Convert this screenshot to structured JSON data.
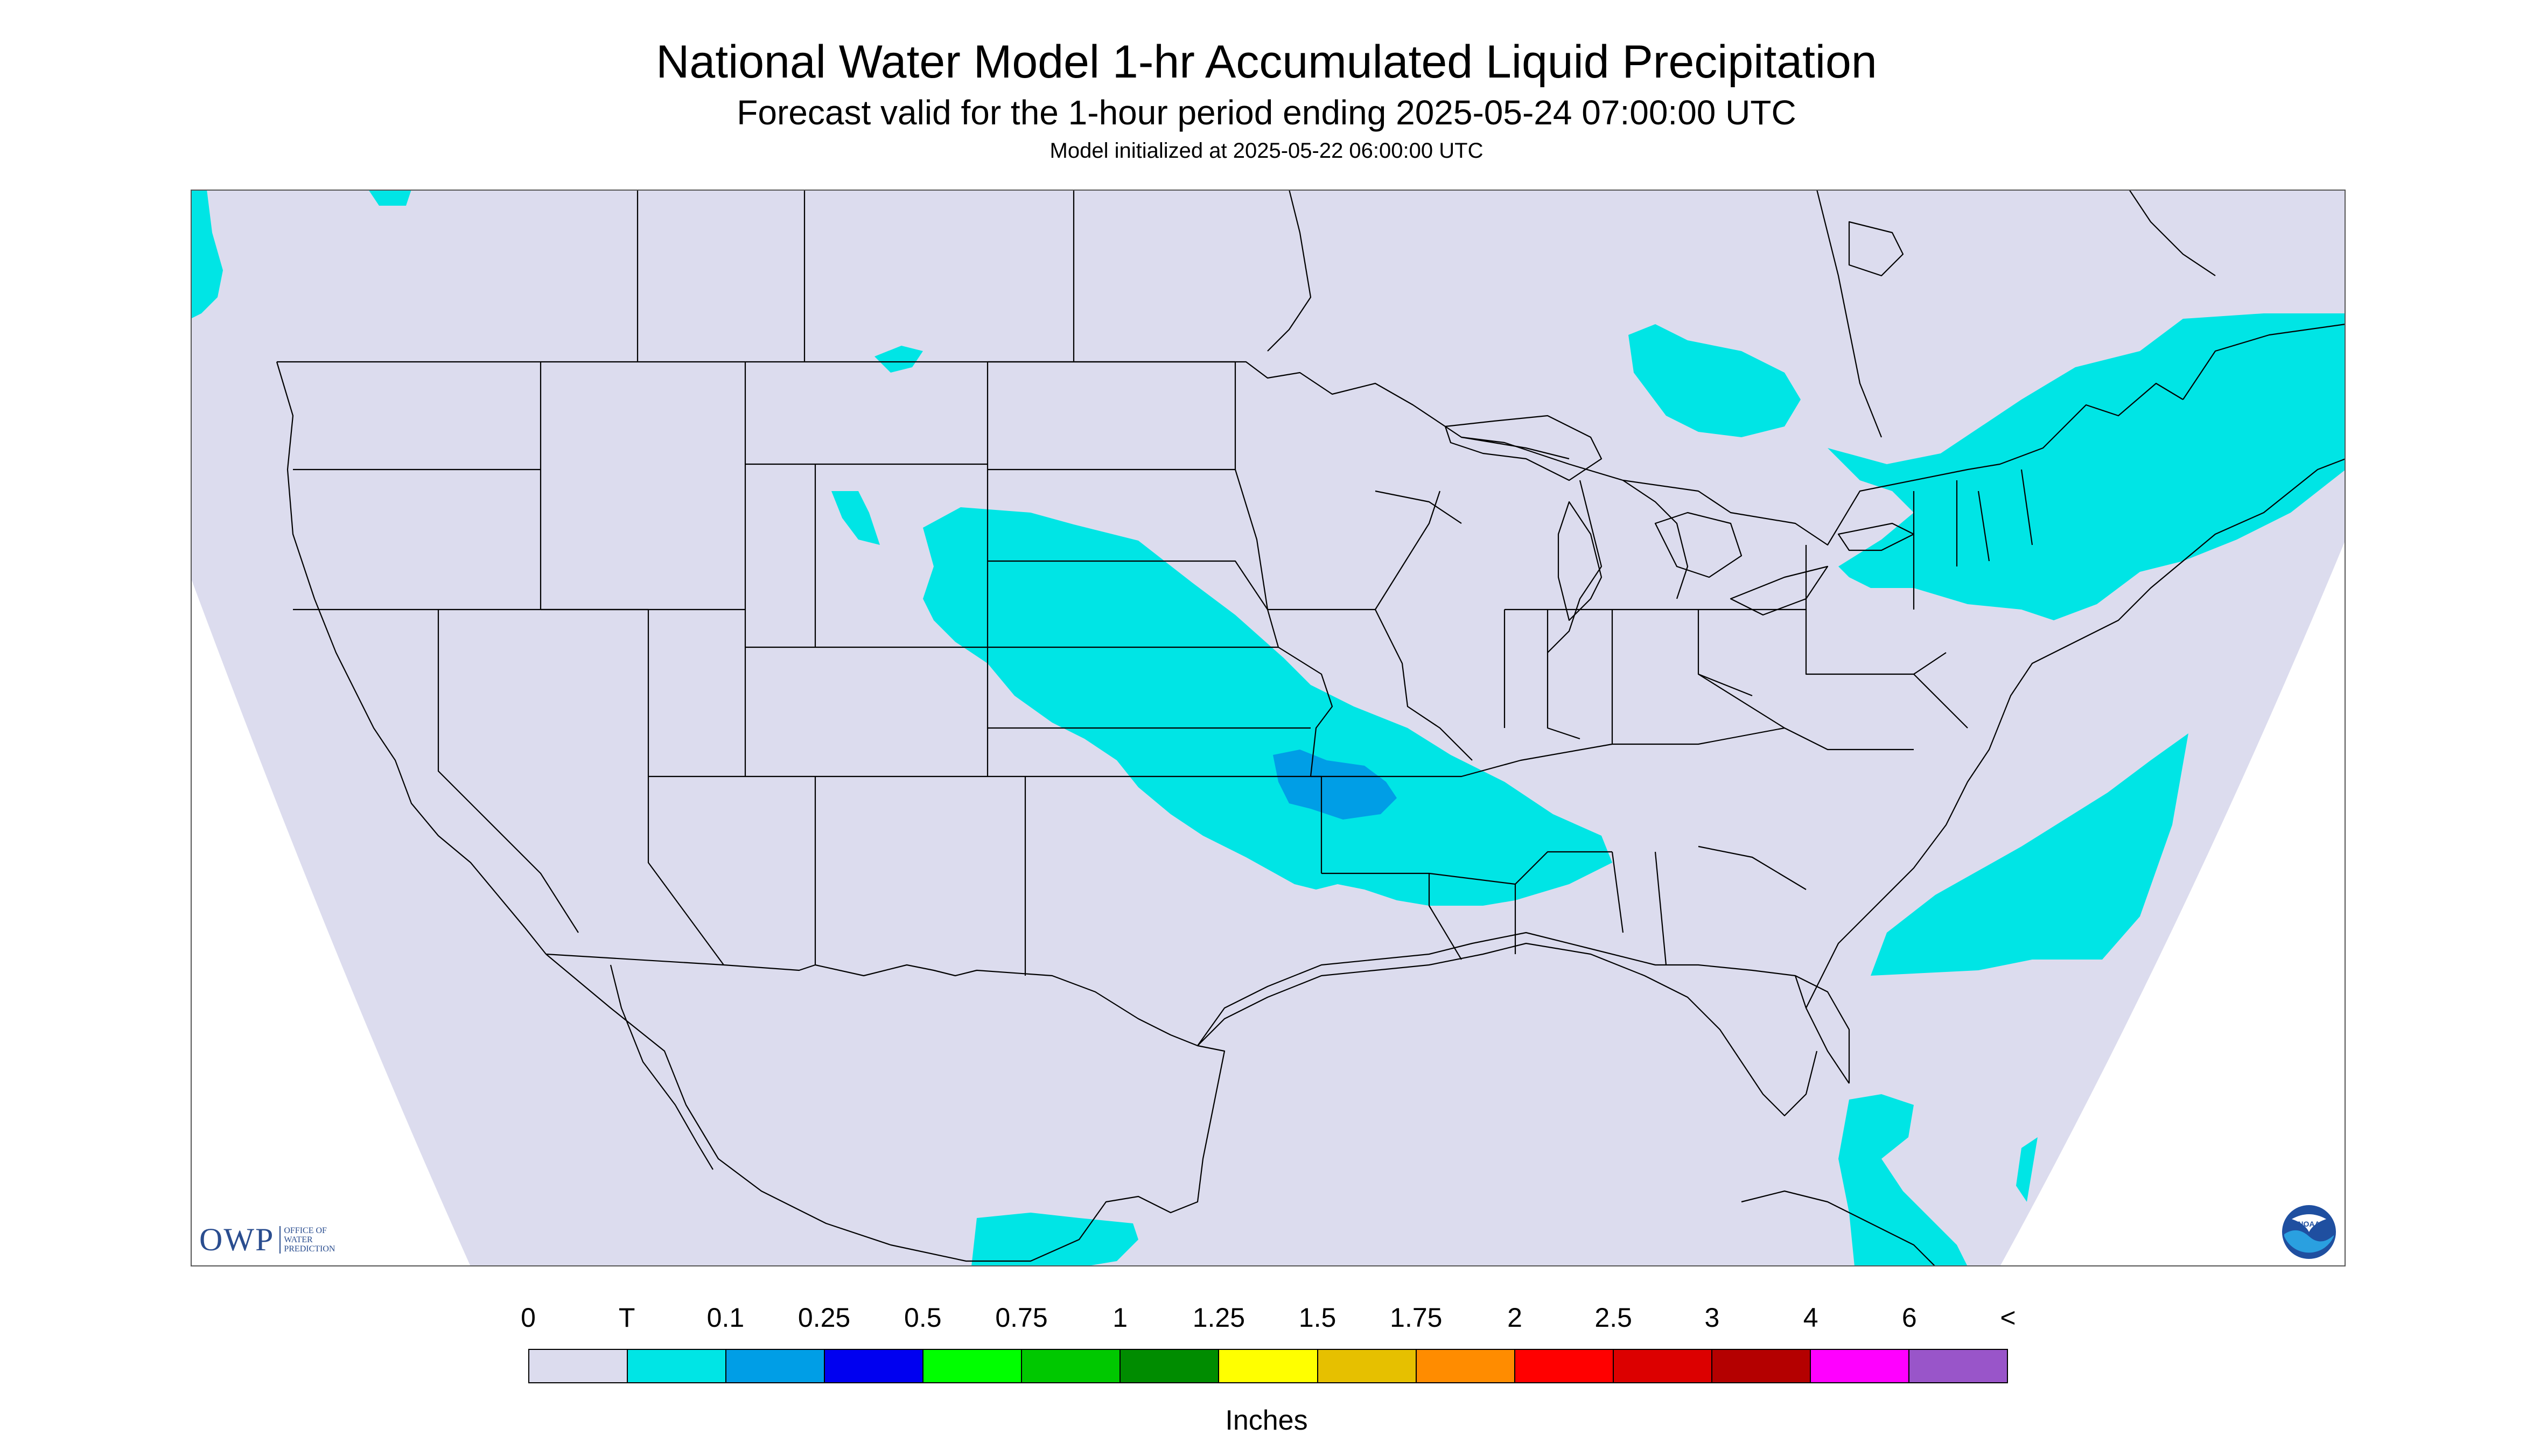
{
  "header": {
    "title": "National Water Model 1-hr Accumulated Liquid Precipitation",
    "subtitle": "Forecast valid for the 1-hour period ending 2025-05-24 07:00:00 UTC",
    "init": "Model initialized at 2025-05-22 06:00:00 UTC"
  },
  "map": {
    "background_color": "#dcdcee",
    "outside_color": "#ffffff",
    "boundary_color": "#000000",
    "region": "CONUS",
    "precip_areas": [
      {
        "name": "central-plains-band",
        "category": "T"
      },
      {
        "name": "kansas-missouri-core",
        "category": "0.1"
      },
      {
        "name": "northeast-band",
        "category": "T"
      },
      {
        "name": "atlantic-offshore",
        "category": "T"
      },
      {
        "name": "ontario-patch",
        "category": "T"
      },
      {
        "name": "montana-patch",
        "category": "T"
      },
      {
        "name": "caribbean-patch",
        "category": "T"
      },
      {
        "name": "central-america-patch",
        "category": "T"
      },
      {
        "name": "pacific-northwest-patch",
        "category": "T"
      }
    ]
  },
  "legend": {
    "labels": [
      "0",
      "T",
      "0.1",
      "0.25",
      "0.5",
      "0.75",
      "1",
      "1.25",
      "1.5",
      "1.75",
      "2",
      "2.5",
      "3",
      "4",
      "6",
      "<"
    ],
    "colors": [
      "#dcdcee",
      "#00e5e5",
      "#009ee6",
      "#0000f0",
      "#00ff00",
      "#00c800",
      "#008c00",
      "#ffff00",
      "#e6c000",
      "#ff8c00",
      "#ff0000",
      "#dc0000",
      "#b40000",
      "#ff00ff",
      "#9955c9"
    ],
    "units": "Inches"
  },
  "logos": {
    "owp_text": "OWP",
    "owp_sub": [
      "OFFICE OF",
      "WATER",
      "PREDICTION"
    ],
    "noaa_text": "NOAA"
  }
}
